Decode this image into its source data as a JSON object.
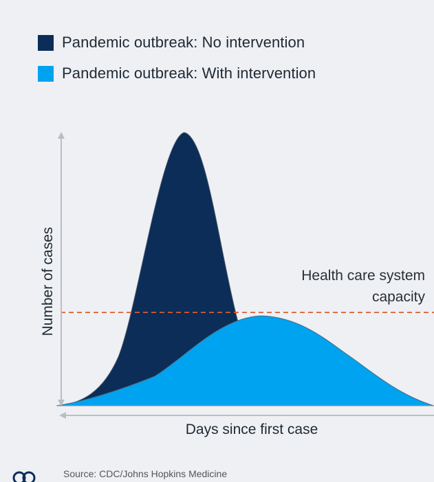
{
  "legend": [
    {
      "label": "Pandemic outbreak: No intervention",
      "color": "#0b2d57"
    },
    {
      "label": "Pandemic outbreak: With intervention",
      "color": "#00a3ef"
    }
  ],
  "capacity_label_line1": "Health care system",
  "capacity_label_line2": "capacity",
  "y_axis_label": "Number of cases",
  "x_axis_label": "Days since first case",
  "source_text": "Source: CDC/Johns Hopkins Medicine",
  "colors": {
    "no_intervention": "#0b2d57",
    "with_intervention": "#00a3ef",
    "capacity_line": "#e05a2b",
    "axis": "#b9bec6",
    "background": "#eef0f4"
  },
  "icons": [
    "up-arrow-icon",
    "left-arrow-icon",
    "logo-icon"
  ]
}
